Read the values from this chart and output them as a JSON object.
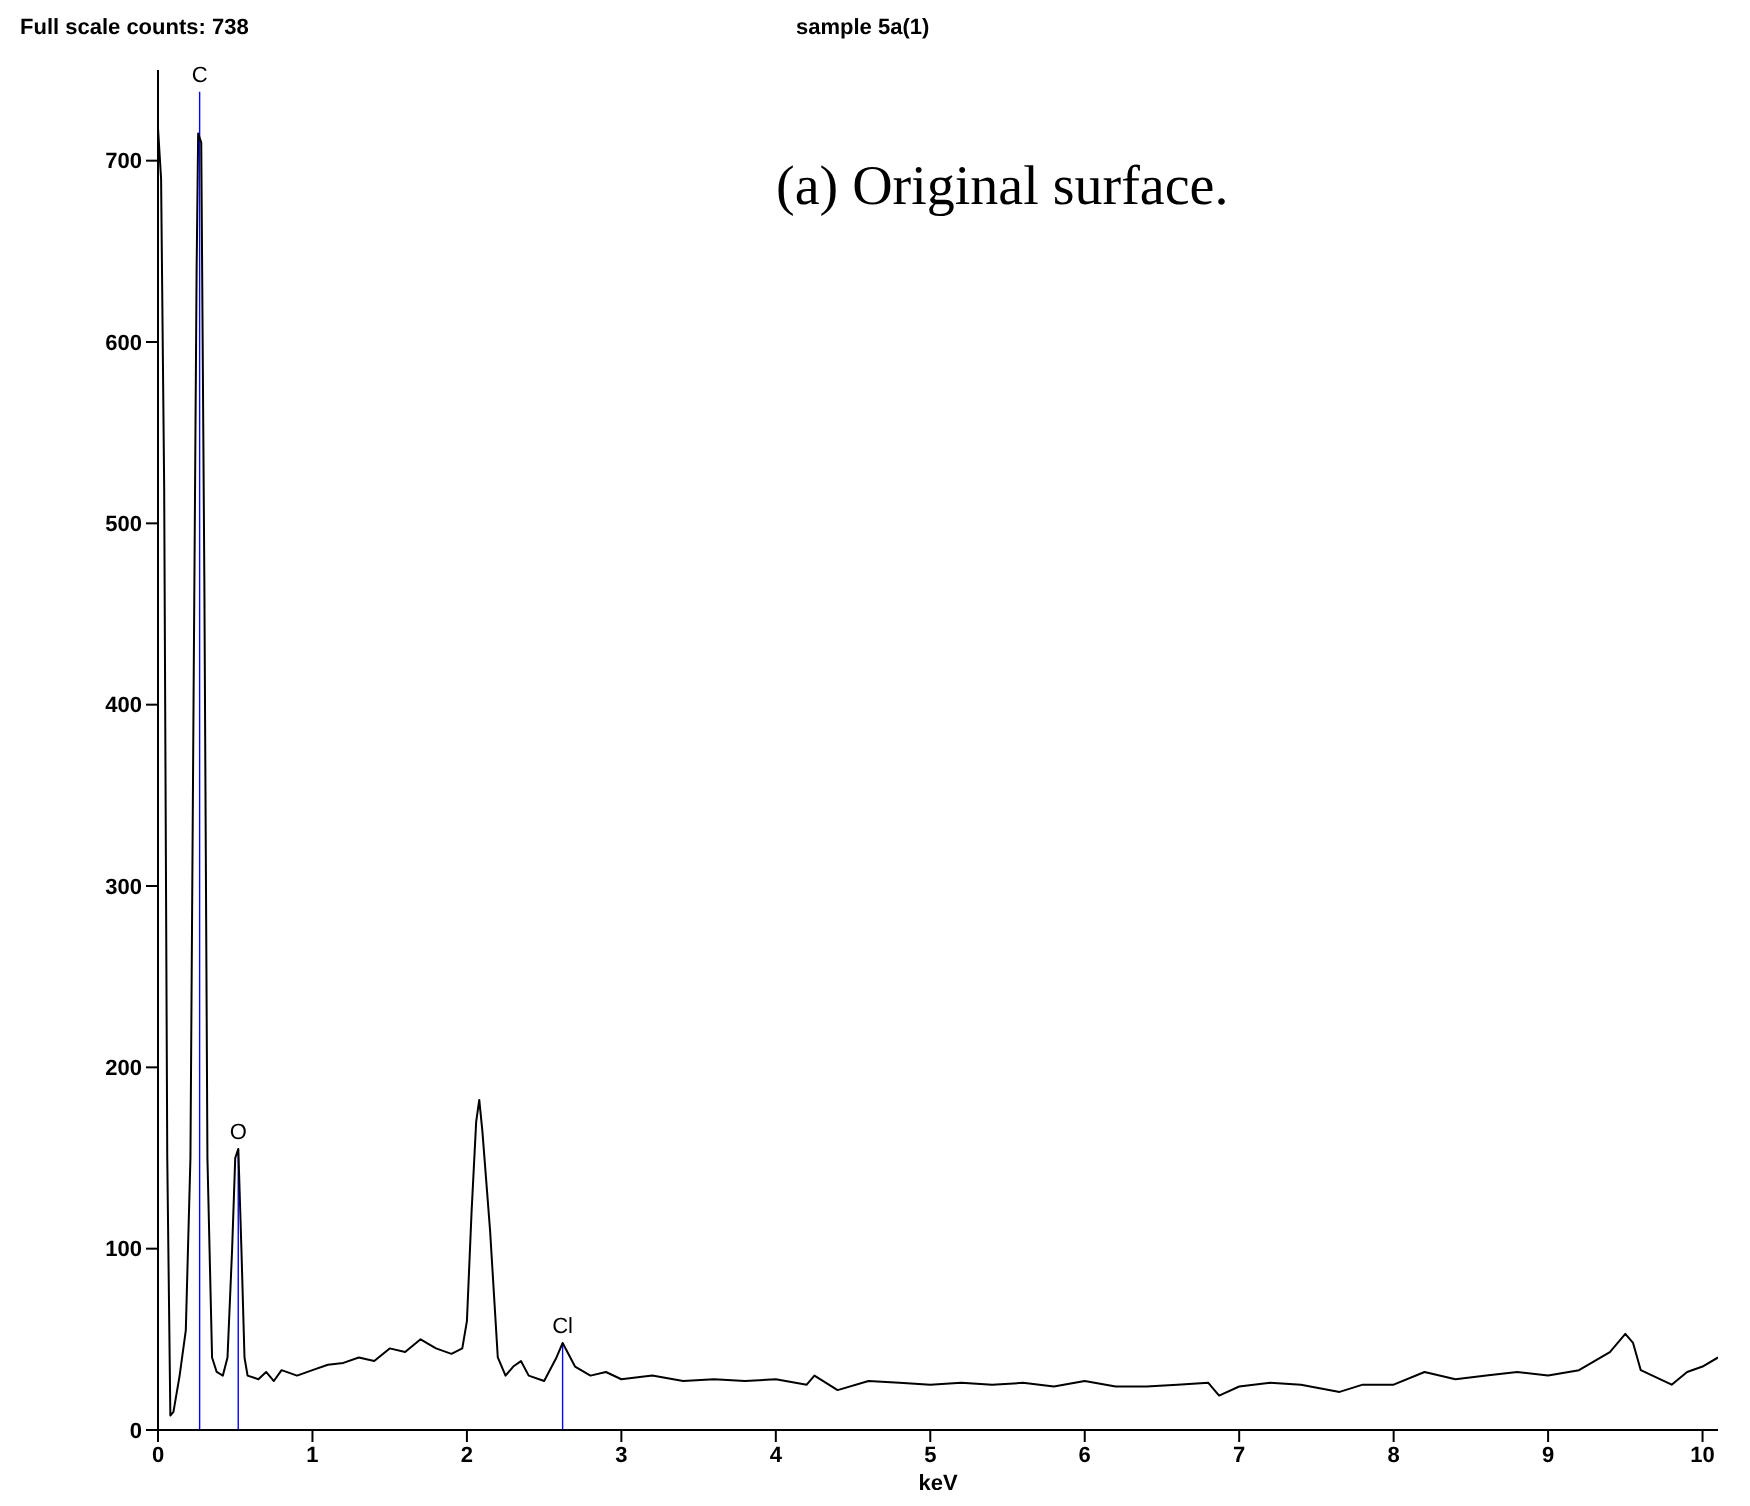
{
  "chart_data": {
    "type": "line",
    "title": "sample 5a(1)",
    "xlabel": "keV",
    "annotations": [
      "Full scale counts: 738",
      "(a) Original surface."
    ],
    "xlim": [
      0,
      10.1
    ],
    "xticks": [
      0,
      1,
      2,
      3,
      4,
      5,
      6,
      7,
      8,
      9,
      10
    ],
    "ylim": [
      0,
      750
    ],
    "yticks": [
      0,
      100,
      200,
      300,
      400,
      500,
      600,
      700
    ],
    "marker": "none",
    "series": [
      {
        "color": "#000000",
        "x": [
          0,
          0.02,
          0.04,
          0.06,
          0.08,
          0.1,
          0.14,
          0.18,
          0.21,
          0.23,
          0.25,
          0.26,
          0.28,
          0.3,
          0.32,
          0.35,
          0.38,
          0.42,
          0.45,
          0.48,
          0.5,
          0.52,
          0.54,
          0.56,
          0.58,
          0.65,
          0.7,
          0.75,
          0.8,
          0.9,
          1,
          1.1,
          1.2,
          1.3,
          1.4,
          1.5,
          1.6,
          1.7,
          1.8,
          1.9,
          1.97,
          2,
          2.03,
          2.06,
          2.08,
          2.1,
          2.15,
          2.2,
          2.25,
          2.3,
          2.35,
          2.4,
          2.5,
          2.58,
          2.62,
          2.7,
          2.8,
          2.9,
          3,
          3.2,
          3.4,
          3.6,
          3.8,
          4,
          4.2,
          4.25,
          4.4,
          4.6,
          4.8,
          5,
          5.2,
          5.4,
          5.6,
          5.8,
          6,
          6.2,
          6.4,
          6.6,
          6.8,
          6.87,
          7,
          7.2,
          7.4,
          7.65,
          7.8,
          8,
          8.2,
          8.4,
          8.6,
          8.8,
          9,
          9.2,
          9.4,
          9.5,
          9.55,
          9.6,
          9.8,
          9.9,
          10,
          10.1
        ],
        "values": [
          718,
          690,
          520,
          150,
          8,
          10,
          30,
          55,
          150,
          400,
          640,
          715,
          710,
          470,
          150,
          40,
          32,
          30,
          40,
          100,
          150,
          155,
          100,
          40,
          30,
          28,
          32,
          27,
          33,
          30,
          33,
          36,
          37,
          40,
          38,
          45,
          43,
          50,
          45,
          42,
          45,
          60,
          120,
          170,
          182,
          165,
          110,
          40,
          30,
          35,
          38,
          30,
          27,
          40,
          48,
          35,
          30,
          32,
          28,
          30,
          27,
          28,
          27,
          28,
          25,
          30,
          22,
          27,
          26,
          25,
          26,
          25,
          26,
          24,
          27,
          24,
          24,
          25,
          26,
          19,
          24,
          26,
          25,
          21,
          25,
          25,
          32,
          28,
          30,
          32,
          30,
          33,
          43,
          53,
          48,
          33,
          25,
          32,
          35,
          40
        ]
      },
      {
        "type": "bar",
        "color": "#0000ff",
        "x": [
          0.27,
          0.52,
          2.62
        ],
        "values": [
          738,
          155,
          48
        ],
        "value_labels": [
          "C",
          "O",
          "Cl"
        ]
      }
    ]
  }
}
